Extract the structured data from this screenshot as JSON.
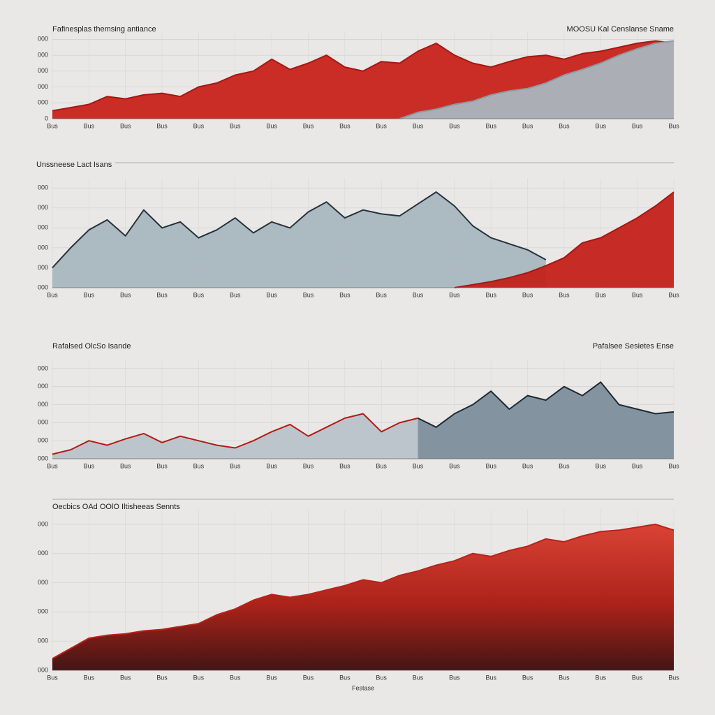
{
  "chart_data": [
    {
      "type": "area",
      "title": "Fafinesplas themsing antiance",
      "subtitle": "MOOSU Kal Censlanse Sname",
      "categories": [
        "Bus",
        null,
        "Bus",
        null,
        "Bus",
        null,
        "Bus",
        null,
        "Bus",
        null,
        "Bus",
        null,
        "Bus",
        null,
        "Bus",
        null,
        "Bus",
        null,
        "Bus",
        null,
        "Bus",
        null,
        "Bus",
        null,
        "Bus",
        null,
        "Bus",
        null,
        "Bus",
        null,
        "Bus",
        null,
        "Bus",
        null,
        "Bus"
      ],
      "series": [
        {
          "name": "Red",
          "color": "#c8231b",
          "line_color": "#a51812",
          "values": [
            10,
            14,
            18,
            28,
            25,
            30,
            32,
            28,
            40,
            45,
            55,
            60,
            75,
            62,
            70,
            80,
            65,
            60,
            72,
            70,
            85,
            95,
            80,
            70,
            65,
            72,
            78,
            80,
            75,
            82,
            85,
            90,
            95,
            98,
            95
          ]
        },
        {
          "name": "Gray",
          "color": "#a9b6bd",
          "line_color": "#8a9aa3",
          "values": [
            null,
            null,
            null,
            null,
            null,
            null,
            null,
            null,
            null,
            null,
            null,
            null,
            null,
            null,
            null,
            null,
            null,
            null,
            null,
            0,
            8,
            12,
            18,
            22,
            30,
            35,
            38,
            45,
            55,
            62,
            70,
            80,
            88,
            95,
            98
          ]
        }
      ],
      "ylim": [
        0,
        110
      ],
      "yticks": [
        0,
        {
          "value": 20,
          "label": "000"
        },
        {
          "value": 40,
          "label": "000"
        },
        {
          "value": 60,
          "label": "000"
        },
        {
          "value": 80,
          "label": "000"
        },
        {
          "value": 100,
          "label": "000"
        }
      ]
    },
    {
      "type": "area",
      "title": "Unssneese Lact Isans",
      "categories": [
        "Bus",
        null,
        "Bus",
        null,
        "Bus",
        null,
        "Bus",
        null,
        "Bus",
        null,
        "Bus",
        null,
        "Bus",
        null,
        "Bus",
        null,
        "Bus",
        null,
        "Bus",
        null,
        "Bus",
        null,
        "Bus",
        null,
        "Bus",
        null,
        "Bus",
        null,
        "Bus",
        null,
        "Bus",
        null,
        "Bus",
        null,
        "Bus"
      ],
      "series": [
        {
          "name": "Gray",
          "color": "#a9b7bf",
          "line_color": "#26333d",
          "values": [
            20,
            40,
            58,
            68,
            52,
            78,
            60,
            66,
            50,
            58,
            70,
            55,
            66,
            60,
            76,
            86,
            70,
            78,
            74,
            72,
            84,
            96,
            82,
            62,
            50,
            44,
            38,
            28,
            null,
            null,
            null,
            null,
            null,
            null,
            null
          ]
        },
        {
          "name": "Red",
          "color": "#c4211a",
          "line_color": "#a51812",
          "values": [
            null,
            null,
            null,
            null,
            null,
            null,
            null,
            null,
            null,
            null,
            null,
            null,
            null,
            null,
            null,
            null,
            null,
            null,
            null,
            null,
            null,
            null,
            0,
            3,
            6,
            10,
            15,
            22,
            30,
            45,
            50,
            60,
            70,
            82,
            96
          ]
        }
      ],
      "ylim": [
        0,
        110
      ],
      "yticks": [
        {
          "value": 0,
          "label": "000"
        },
        {
          "value": 20,
          "label": "000"
        },
        {
          "value": 40,
          "label": "000"
        },
        {
          "value": 60,
          "label": "000"
        },
        {
          "value": 80,
          "label": "000"
        },
        {
          "value": 100,
          "label": "000"
        }
      ]
    },
    {
      "type": "area",
      "title": "Rafalsed OlcSo Isande",
      "subtitle": "Pafalsee Sesietes Ense",
      "categories": [
        "Bus",
        null,
        "Bus",
        null,
        "Bus",
        null,
        "Bus",
        null,
        "Bus",
        null,
        "Bus",
        null,
        "Bus",
        null,
        "Bus",
        null,
        "Bus",
        null,
        "Bus",
        null,
        "Bus",
        null,
        "Bus",
        null,
        "Bus",
        null,
        "Bus",
        null,
        "Bus",
        null,
        "Bus",
        null,
        "Bus",
        null,
        "Bus"
      ],
      "series": [
        {
          "name": "Light",
          "color": "#b9c3c9",
          "line_color": "#b31c16",
          "values": [
            5,
            10,
            20,
            15,
            22,
            28,
            18,
            25,
            20,
            15,
            12,
            20,
            30,
            38,
            25,
            35,
            45,
            50,
            30,
            40,
            45,
            null,
            null,
            null,
            null,
            null,
            null,
            null,
            null,
            null,
            null,
            null,
            null,
            null,
            null
          ]
        },
        {
          "name": "Dark",
          "color": "#7d8f9c",
          "line_color": "#1e2a33",
          "values": [
            null,
            null,
            null,
            null,
            null,
            null,
            null,
            null,
            null,
            null,
            null,
            null,
            null,
            null,
            null,
            null,
            null,
            null,
            null,
            null,
            45,
            35,
            50,
            60,
            75,
            55,
            70,
            65,
            80,
            70,
            85,
            60,
            55,
            50,
            52
          ]
        }
      ],
      "ylim": [
        0,
        110
      ],
      "yticks": [
        {
          "value": 0,
          "label": "000"
        },
        {
          "value": 20,
          "label": "000"
        },
        {
          "value": 40,
          "label": "000"
        },
        {
          "value": 60,
          "label": "000"
        },
        {
          "value": 80,
          "label": "000"
        },
        {
          "value": 100,
          "label": "000"
        }
      ]
    },
    {
      "type": "area",
      "title": "Oecbics OAd OOlO Iltisheeas Sennts",
      "x_label": "Festase",
      "categories": [
        "Bus",
        null,
        "Bus",
        null,
        "Bus",
        null,
        "Bus",
        null,
        "Bus",
        null,
        "Bus",
        null,
        "Bus",
        null,
        "Bus",
        null,
        "Bus",
        null,
        "Bus",
        null,
        "Bus",
        null,
        "Bus",
        null,
        "Bus",
        null,
        "Bus",
        null,
        "Bus",
        null,
        "Bus",
        null,
        "Bus",
        null,
        "Bus"
      ],
      "series": [
        {
          "name": "Red",
          "color": "#d93a2c",
          "line_color": "#b8231a",
          "values": [
            8,
            15,
            22,
            24,
            25,
            27,
            28,
            30,
            32,
            38,
            42,
            48,
            52,
            50,
            52,
            55,
            58,
            62,
            60,
            65,
            68,
            72,
            75,
            80,
            78,
            82,
            85,
            90,
            88,
            92,
            95,
            96,
            98,
            100,
            96
          ]
        }
      ],
      "ylim": [
        0,
        110
      ],
      "yticks": [
        {
          "value": 0,
          "label": "000"
        },
        {
          "value": 20,
          "label": "000"
        },
        {
          "value": 40,
          "label": "000"
        },
        {
          "value": 60,
          "label": "000"
        },
        {
          "value": 80,
          "label": "000"
        },
        {
          "value": 100,
          "label": "000"
        }
      ]
    }
  ]
}
